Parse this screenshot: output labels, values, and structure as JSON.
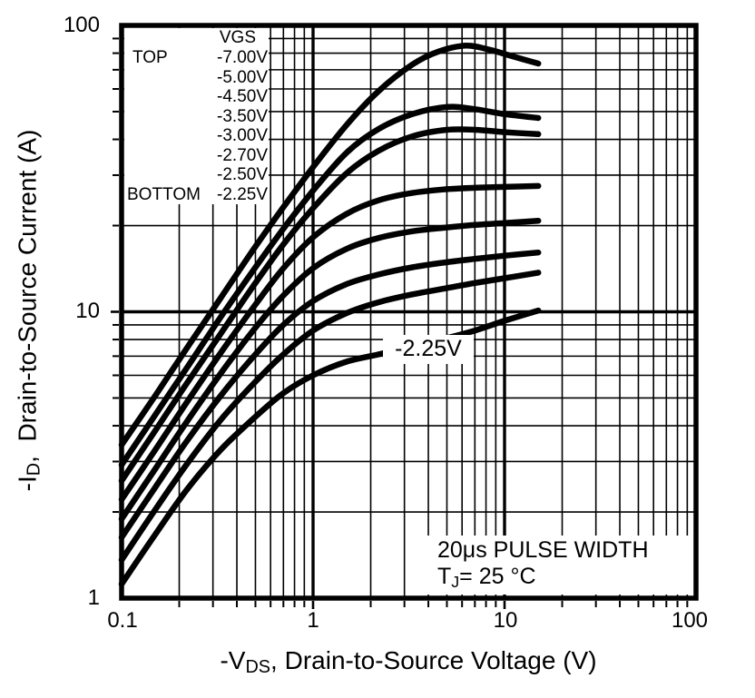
{
  "chart_data": {
    "type": "line",
    "title": "",
    "x_axis": {
      "label": {
        "pre": "-V",
        "sub": "DS",
        "post": ", Drain-to-Source Voltage (V)"
      },
      "scale": "log",
      "min": 0.1,
      "max": 100,
      "tick_labels": [
        "0.1",
        "1",
        "10",
        "100"
      ]
    },
    "y_axis": {
      "label": {
        "pre": "-I",
        "sub": "D",
        "post": ",  Drain-to-Source Current (A)"
      },
      "scale": "log",
      "min": 1,
      "max": 100,
      "tick_labels": [
        "100",
        "10",
        "1"
      ]
    },
    "legend": {
      "header": "VGS",
      "top_marker": "TOP",
      "bottom_marker": "BOTTOM",
      "values": [
        "-7.00V",
        "-5.00V",
        "-4.50V",
        "-3.50V",
        "-3.00V",
        "-2.70V",
        "-2.50V",
        "-2.25V"
      ]
    },
    "series": [
      {
        "vgs": "-7.00V",
        "points": [
          [
            0.1,
            3.43
          ],
          [
            0.15,
            5.1
          ],
          [
            0.22,
            7.5
          ],
          [
            0.33,
            11.2
          ],
          [
            0.5,
            16.9
          ],
          [
            0.7,
            23.2
          ],
          [
            1.0,
            32
          ],
          [
            1.5,
            45
          ],
          [
            2.2,
            59
          ],
          [
            3.3,
            73
          ],
          [
            4.5,
            81
          ],
          [
            6.3,
            85
          ],
          [
            8.5,
            82
          ],
          [
            11,
            78
          ],
          [
            15,
            73.6
          ]
        ]
      },
      {
        "vgs": "-5.00V",
        "points": [
          [
            0.1,
            2.92
          ],
          [
            0.15,
            4.37
          ],
          [
            0.22,
            6.4
          ],
          [
            0.33,
            9.6
          ],
          [
            0.5,
            14.3
          ],
          [
            0.7,
            19.5
          ],
          [
            1.0,
            26.5
          ],
          [
            1.5,
            36
          ],
          [
            2.2,
            43.5
          ],
          [
            3.3,
            49
          ],
          [
            5,
            51.9
          ],
          [
            7,
            51
          ],
          [
            10,
            49
          ],
          [
            15,
            47.5
          ]
        ]
      },
      {
        "vgs": "-4.50V",
        "points": [
          [
            0.1,
            2.57
          ],
          [
            0.15,
            3.85
          ],
          [
            0.22,
            5.65
          ],
          [
            0.33,
            8.4
          ],
          [
            0.5,
            12.6
          ],
          [
            0.7,
            17.2
          ],
          [
            1.0,
            23
          ],
          [
            1.5,
            30.5
          ],
          [
            2.2,
            36.5
          ],
          [
            3.3,
            41
          ],
          [
            5,
            43.2
          ],
          [
            7,
            43.2
          ],
          [
            10,
            42.4
          ],
          [
            15,
            41.7
          ]
        ]
      },
      {
        "vgs": "-3.50V",
        "points": [
          [
            0.1,
            2.21
          ],
          [
            0.15,
            3.3
          ],
          [
            0.22,
            4.85
          ],
          [
            0.33,
            7.2
          ],
          [
            0.5,
            10.6
          ],
          [
            0.7,
            14.2
          ],
          [
            1.0,
            18.2
          ],
          [
            1.5,
            22
          ],
          [
            2.2,
            24.5
          ],
          [
            3.3,
            26
          ],
          [
            5,
            26.8
          ],
          [
            7,
            27.1
          ],
          [
            10,
            27.3
          ],
          [
            15,
            27.5
          ]
        ]
      },
      {
        "vgs": "-3.00V",
        "points": [
          [
            0.1,
            1.89
          ],
          [
            0.15,
            2.83
          ],
          [
            0.22,
            4.15
          ],
          [
            0.33,
            6.1
          ],
          [
            0.5,
            8.8
          ],
          [
            0.7,
            11.4
          ],
          [
            1.0,
            14.2
          ],
          [
            1.5,
            16.6
          ],
          [
            2.2,
            18.1
          ],
          [
            3.3,
            19.1
          ],
          [
            5,
            19.7
          ],
          [
            7,
            20.1
          ],
          [
            10,
            20.4
          ],
          [
            15,
            20.8
          ]
        ]
      },
      {
        "vgs": "-2.70V",
        "points": [
          [
            0.1,
            1.63
          ],
          [
            0.15,
            2.44
          ],
          [
            0.22,
            3.55
          ],
          [
            0.33,
            5.1
          ],
          [
            0.5,
            7.1
          ],
          [
            0.7,
            9.0
          ],
          [
            1.0,
            10.9
          ],
          [
            1.5,
            12.5
          ],
          [
            2.2,
            13.5
          ],
          [
            3.3,
            14.3
          ],
          [
            5,
            14.9
          ],
          [
            7,
            15.3
          ],
          [
            10,
            15.7
          ],
          [
            15,
            16.1
          ]
        ]
      },
      {
        "vgs": "-2.50V",
        "points": [
          [
            0.1,
            1.36
          ],
          [
            0.15,
            2.04
          ],
          [
            0.22,
            2.95
          ],
          [
            0.33,
            4.2
          ],
          [
            0.5,
            5.7
          ],
          [
            0.7,
            7.1
          ],
          [
            1.0,
            8.6
          ],
          [
            1.5,
            9.9
          ],
          [
            2.2,
            10.8
          ],
          [
            3.3,
            11.5
          ],
          [
            5,
            12.1
          ],
          [
            7,
            12.6
          ],
          [
            10,
            13.1
          ],
          [
            15,
            13.7
          ]
        ]
      },
      {
        "vgs": "-2.25V",
        "points": [
          [
            0.1,
            1.12
          ],
          [
            0.15,
            1.67
          ],
          [
            0.22,
            2.4
          ],
          [
            0.33,
            3.3
          ],
          [
            0.5,
            4.3
          ],
          [
            0.7,
            5.2
          ],
          [
            1.0,
            6.0
          ],
          [
            1.5,
            6.7
          ],
          [
            2.2,
            7.1
          ],
          [
            3.3,
            7.6
          ],
          [
            5,
            8.1
          ],
          [
            7,
            8.6
          ],
          [
            10,
            9.3
          ],
          [
            15,
            10.1
          ]
        ]
      }
    ],
    "curve_label": "-2.25V",
    "annotation": {
      "line1": "20μs PULSE WIDTH",
      "line2": {
        "pre": "T",
        "sub": "J",
        "post": "= 25 °C"
      }
    },
    "grid": true,
    "legend_position": "top-left",
    "colors": {
      "curve": "#000000",
      "grid": "#000000",
      "background": "#ffffff"
    }
  }
}
